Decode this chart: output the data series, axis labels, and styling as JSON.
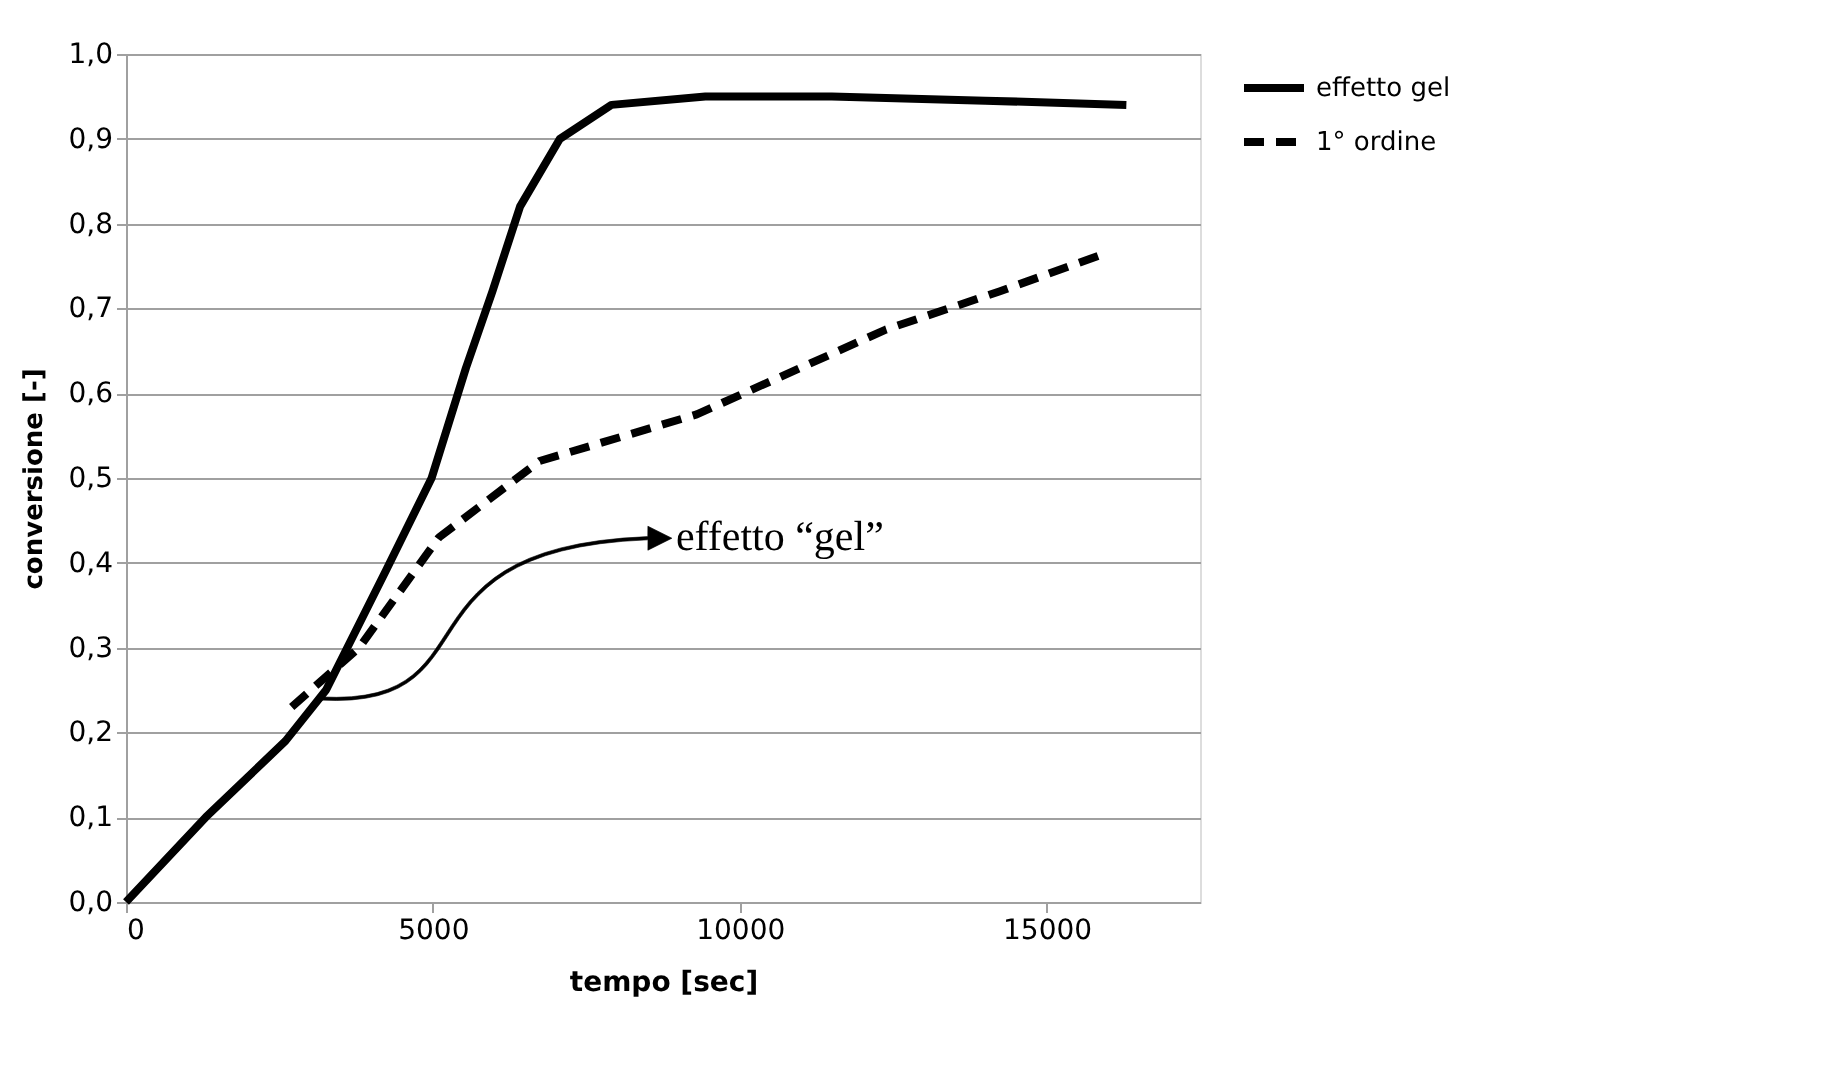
{
  "chart_data": {
    "type": "line",
    "xlabel": "tempo [sec]",
    "ylabel": "conversione [-]",
    "xlim": [
      0,
      17500
    ],
    "xticks": [
      0,
      5000,
      10000,
      15000
    ],
    "ylim": [
      0,
      1.0
    ],
    "yticks": [
      {
        "value": 0,
        "label": "0,0"
      },
      {
        "value": 0.1,
        "label": "0,1"
      },
      {
        "value": 0.2,
        "label": "0,2"
      },
      {
        "value": 0.3,
        "label": "0,3"
      },
      {
        "value": 0.4,
        "label": "0,4"
      },
      {
        "value": 0.5,
        "label": "0,5"
      },
      {
        "value": 0.6,
        "label": "0,6"
      },
      {
        "value": 0.7,
        "label": "0,7"
      },
      {
        "value": 0.8,
        "label": "0,8"
      },
      {
        "value": 0.9,
        "label": "0,9"
      },
      {
        "value": 1.0,
        "label": "1,0"
      }
    ],
    "grid": "y",
    "legend": "right",
    "marker": "none",
    "series": [
      {
        "name": "effetto gel",
        "color": "#000000",
        "line_style": "solid",
        "x": [
          0,
          1300,
          2600,
          3260,
          4230,
          4980,
          5540,
          5970,
          6420,
          7070,
          7910,
          9440,
          11500,
          14000,
          16300
        ],
        "values": [
          0,
          0.1,
          0.19,
          0.25,
          0.39,
          0.5,
          0.63,
          0.72,
          0.82,
          0.9,
          0.94,
          0.95,
          0.95,
          0.945,
          0.94
        ]
      },
      {
        "name": "1° ordine",
        "color": "#000000",
        "line_style": "dashed",
        "x": [
          2700,
          3800,
          5100,
          6740,
          9300,
          12380,
          14230,
          15960
        ],
        "values": [
          0.23,
          0.3,
          0.43,
          0.52,
          0.575,
          0.675,
          0.72,
          0.765
        ]
      }
    ],
    "annotations": [
      "effetto “gel”"
    ]
  }
}
